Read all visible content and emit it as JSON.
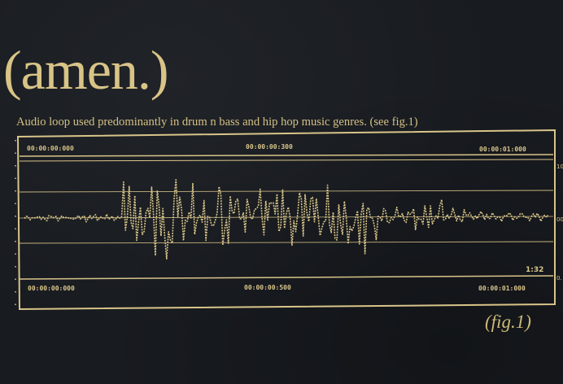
{
  "title": "(amen.)",
  "subtitle": "Audio loop used predominantly in drum n bass and hip hop music genres. (see fig.1)",
  "figure_label": "(fig.1)",
  "colors": {
    "background": "#181b20",
    "ink": "#d9c58a"
  },
  "figure": {
    "top_timestamps": [
      "00:00:00:000",
      "00:00:00:300",
      "00:00:01:000"
    ],
    "bottom_timestamps": [
      "00:00:00:000",
      "00:00:00:500",
      "00:00:01:000"
    ],
    "duration": "1:32",
    "side_labels": [
      "10",
      "00",
      "0."
    ]
  }
}
